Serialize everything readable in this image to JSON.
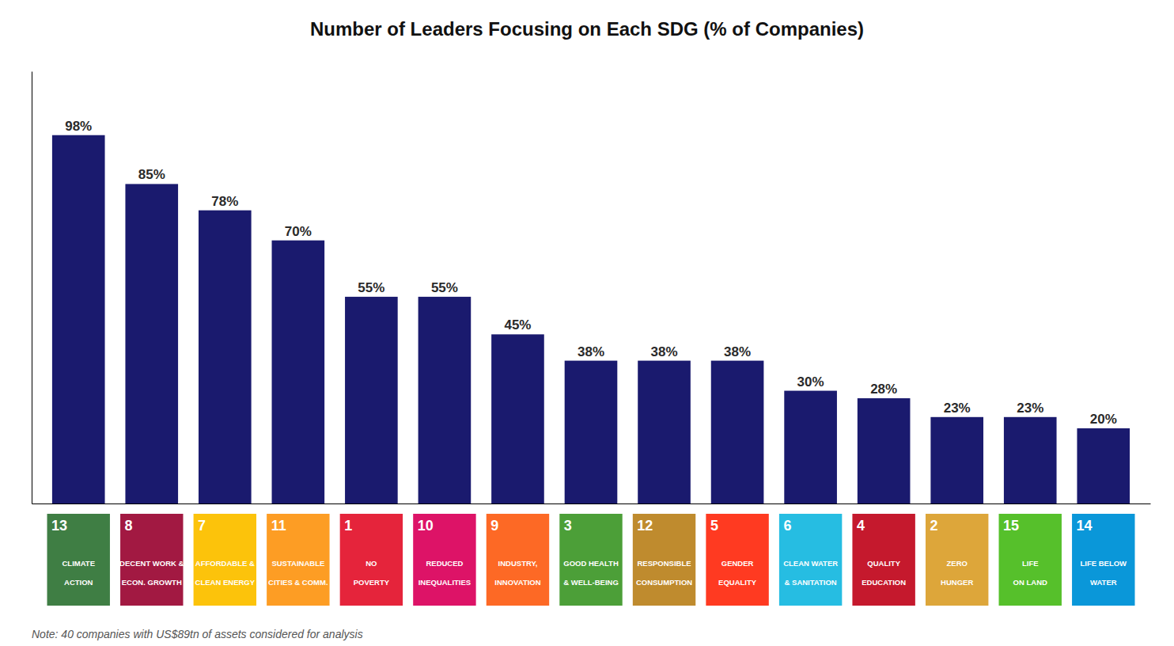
{
  "chart_data": {
    "type": "bar",
    "title": "Number of Leaders Focusing on Each SDG (% of Companies)",
    "note": "Note: 40 companies with US$89tn of assets considered for analysis",
    "categories": [
      "13",
      "8",
      "7",
      "11",
      "1",
      "10",
      "9",
      "3",
      "12",
      "5",
      "6",
      "4",
      "2",
      "15",
      "14"
    ],
    "values": [
      98,
      85,
      78,
      70,
      55,
      55,
      45,
      38,
      38,
      38,
      30,
      28,
      23,
      23,
      20
    ],
    "value_labels": [
      "98%",
      "85%",
      "78%",
      "70%",
      "55%",
      "55%",
      "45%",
      "38%",
      "38%",
      "38%",
      "30%",
      "28%",
      "23%",
      "23%",
      "20%"
    ],
    "data_labels": true,
    "color": "#1a1a6e",
    "ylim": [
      0,
      115
    ],
    "tick_labels": "x",
    "grid": false,
    "annotations": [
      {
        "x": "13",
        "lines": [
          "CLIMATE",
          "ACTION"
        ],
        "color": "#3F7E44"
      },
      {
        "x": "8",
        "lines": [
          "DECENT WORK &",
          "ECON. GROWTH"
        ],
        "color": "#A21942"
      },
      {
        "x": "7",
        "lines": [
          "AFFORDABLE &",
          "CLEAN ENERGY"
        ],
        "color": "#FCC30B"
      },
      {
        "x": "11",
        "lines": [
          "SUSTAINABLE",
          "CITIES & COMM."
        ],
        "color": "#FD9D24"
      },
      {
        "x": "1",
        "lines": [
          "NO",
          "POVERTY"
        ],
        "color": "#E5243B"
      },
      {
        "x": "10",
        "lines": [
          "REDUCED",
          "INEQUALITIES"
        ],
        "color": "#DD1367"
      },
      {
        "x": "9",
        "lines": [
          "INDUSTRY,",
          "INNOVATION"
        ],
        "color": "#FD6925"
      },
      {
        "x": "3",
        "lines": [
          "GOOD HEALTH",
          "& WELL-BEING"
        ],
        "color": "#4C9F38"
      },
      {
        "x": "12",
        "lines": [
          "RESPONSIBLE",
          "CONSUMPTION"
        ],
        "color": "#BF8B2E"
      },
      {
        "x": "5",
        "lines": [
          "GENDER",
          "EQUALITY"
        ],
        "color": "#FF3A21"
      },
      {
        "x": "6",
        "lines": [
          "CLEAN WATER",
          "& SANITATION"
        ],
        "color": "#26BDE2"
      },
      {
        "x": "4",
        "lines": [
          "QUALITY",
          "EDUCATION"
        ],
        "color": "#C5192D"
      },
      {
        "x": "2",
        "lines": [
          "ZERO",
          "HUNGER"
        ],
        "color": "#DDA63A"
      },
      {
        "x": "15",
        "lines": [
          "LIFE",
          "ON LAND"
        ],
        "color": "#56C02B"
      },
      {
        "x": "14",
        "lines": [
          "LIFE BELOW",
          "WATER"
        ],
        "color": "#0A97D9"
      }
    ]
  }
}
